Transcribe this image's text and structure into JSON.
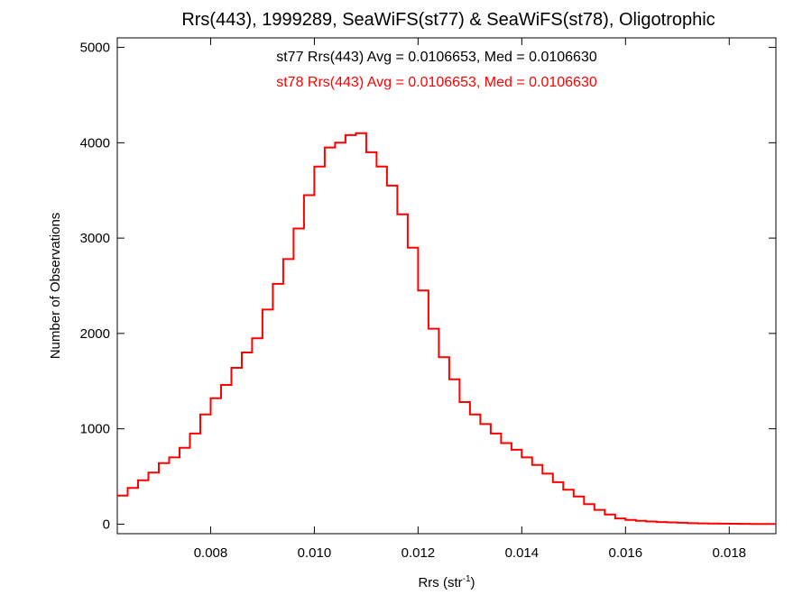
{
  "chart_data": {
    "type": "line",
    "title": "Rrs(443), 1999289, SeaWiFS(st77) & SeaWiFS(st78), Oligotrophic",
    "xlabel": "Rrs (str",
    "xlabel_sup": "-1",
    "xlabel_suffix": ")",
    "ylabel": "Number of Observations",
    "xlim": [
      0.0062,
      0.0189
    ],
    "ylim": [
      -100,
      5100
    ],
    "x_ticks": [
      0.008,
      0.01,
      0.012,
      0.014,
      0.016,
      0.018
    ],
    "x_tick_labels": [
      "0.008",
      "0.010",
      "0.012",
      "0.014",
      "0.016",
      "0.018"
    ],
    "y_ticks": [
      0,
      1000,
      2000,
      3000,
      4000,
      5000
    ],
    "y_tick_labels": [
      "0",
      "1000",
      "2000",
      "3000",
      "4000",
      "5000"
    ],
    "annotations": [
      {
        "text": "st77 Rrs(443) Avg = 0.0106653, Med = 0.0106630",
        "color": "#000000"
      },
      {
        "text": "st78 Rrs(443) Avg = 0.0106653, Med = 0.0106630",
        "color": "#ff0000"
      }
    ],
    "series": [
      {
        "color": "#ff0000",
        "step": true,
        "x": [
          0.0062,
          0.0064,
          0.0066,
          0.0068,
          0.007,
          0.0072,
          0.0074,
          0.0076,
          0.0078,
          0.008,
          0.0082,
          0.0084,
          0.0086,
          0.0088,
          0.009,
          0.0092,
          0.0094,
          0.0096,
          0.0098,
          0.01,
          0.0102,
          0.0104,
          0.0106,
          0.0108,
          0.011,
          0.0112,
          0.0114,
          0.0116,
          0.0118,
          0.012,
          0.0122,
          0.0124,
          0.0126,
          0.0128,
          0.013,
          0.0132,
          0.0134,
          0.0136,
          0.0138,
          0.014,
          0.0142,
          0.0144,
          0.0146,
          0.0148,
          0.015,
          0.0152,
          0.0154,
          0.0156,
          0.0158,
          0.016,
          0.0162,
          0.0164,
          0.0166,
          0.0168,
          0.017,
          0.0172,
          0.0174,
          0.0176,
          0.0178,
          0.018,
          0.0182,
          0.0184,
          0.0186,
          0.0188
        ],
        "y": [
          300,
          380,
          460,
          540,
          640,
          700,
          800,
          950,
          1150,
          1320,
          1460,
          1640,
          1800,
          1950,
          2250,
          2520,
          2780,
          3100,
          3450,
          3750,
          3950,
          4000,
          4080,
          4100,
          3900,
          3750,
          3550,
          3250,
          2900,
          2450,
          2050,
          1750,
          1520,
          1280,
          1150,
          1050,
          950,
          850,
          780,
          700,
          620,
          530,
          440,
          360,
          290,
          210,
          150,
          100,
          60,
          45,
          35,
          28,
          22,
          18,
          14,
          10,
          8,
          6,
          5,
          4,
          3,
          2,
          2,
          1
        ]
      }
    ],
    "grid": false,
    "legend": "none"
  }
}
